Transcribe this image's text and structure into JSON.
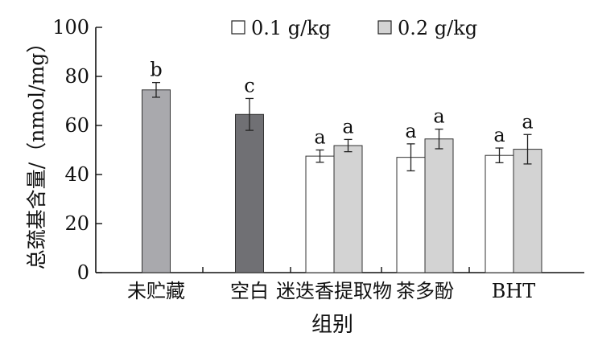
{
  "chart_data": {
    "type": "bar",
    "ylabel": "总巯基含量/（nmol/mg）",
    "xlabel": "组别",
    "ylim": [
      0,
      100
    ],
    "yticks": [
      0,
      20,
      40,
      60,
      80,
      100
    ],
    "grid": false,
    "legend_position": "top",
    "categories": [
      "未贮藏",
      "空白",
      "迷迭香提取物",
      "茶多酚",
      "BHT"
    ],
    "series": [
      {
        "name": "0.1 g/kg",
        "color": "#ffffff",
        "values": [
          null,
          null,
          47.5,
          47.0,
          47.8
        ],
        "errors": [
          null,
          null,
          2.5,
          5.5,
          3.0
        ],
        "labels": [
          null,
          null,
          "a",
          "a",
          "a"
        ]
      },
      {
        "name": "0.2 g/kg",
        "color": "#d3d3d3",
        "values": [
          null,
          null,
          51.8,
          54.5,
          50.3
        ],
        "errors": [
          null,
          null,
          2.5,
          4.0,
          6.0
        ],
        "labels": [
          null,
          null,
          "a",
          "a",
          "a"
        ]
      }
    ],
    "single_bars": [
      {
        "category": "未贮藏",
        "value": 74.5,
        "error": 3.0,
        "label": "b",
        "color": "#a9a9ad"
      },
      {
        "category": "空白",
        "value": 64.5,
        "error": 6.5,
        "label": "c",
        "color": "#707074"
      }
    ]
  }
}
